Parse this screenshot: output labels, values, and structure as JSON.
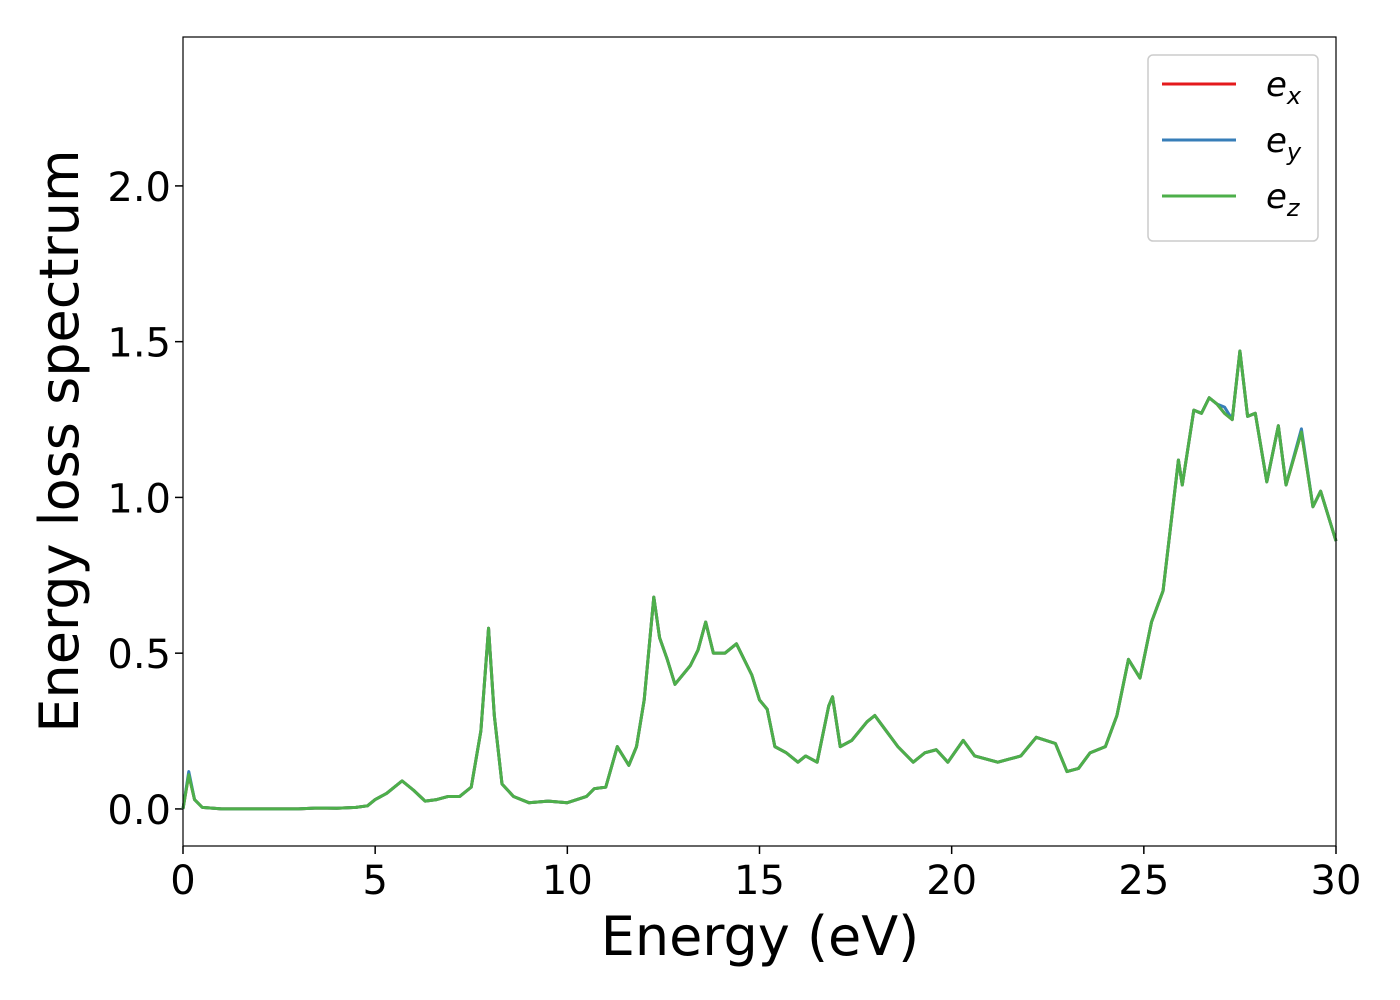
{
  "chart_data": {
    "type": "line",
    "xlabel": "Energy (eV)",
    "ylabel": "Energy loss spectrum",
    "x": [
      0,
      0.15,
      0.3,
      0.5,
      1,
      2,
      3,
      3.5,
      4,
      4.5,
      4.8,
      5,
      5.3,
      5.7,
      6,
      6.3,
      6.6,
      6.9,
      7.2,
      7.5,
      7.75,
      7.95,
      8.1,
      8.3,
      8.6,
      9,
      9.5,
      10,
      10.5,
      10.7,
      11,
      11.3,
      11.6,
      11.8,
      12.0,
      12.25,
      12.4,
      12.6,
      12.8,
      13.2,
      13.4,
      13.6,
      13.8,
      14.1,
      14.4,
      14.8,
      15.0,
      15.2,
      15.4,
      15.7,
      16.0,
      16.2,
      16.5,
      16.8,
      16.9,
      17.1,
      17.4,
      17.8,
      18.0,
      18.3,
      18.6,
      19.0,
      19.3,
      19.6,
      19.9,
      20.3,
      20.6,
      21.2,
      21.5,
      21.8,
      22.2,
      22.7,
      23.0,
      23.3,
      23.6,
      24.0,
      24.3,
      24.6,
      24.9,
      25.2,
      25.5,
      25.9,
      26.0,
      26.3,
      26.5,
      26.7,
      26.9,
      27.1,
      27.3,
      27.5,
      27.7,
      27.9,
      28.2,
      28.5,
      28.7,
      29.1,
      29.4,
      29.6,
      30
    ],
    "series": [
      {
        "name": "ex",
        "color": "#e41a1c",
        "values": [
          0.0,
          0.11,
          0.03,
          0.005,
          0,
          0,
          0,
          0.003,
          0.002,
          0.005,
          0.01,
          0.03,
          0.05,
          0.09,
          0.06,
          0.025,
          0.03,
          0.04,
          0.04,
          0.07,
          0.25,
          0.58,
          0.3,
          0.08,
          0.04,
          0.02,
          0.025,
          0.02,
          0.04,
          0.065,
          0.07,
          0.2,
          0.14,
          0.2,
          0.35,
          0.68,
          0.55,
          0.48,
          0.4,
          0.46,
          0.51,
          0.6,
          0.5,
          0.5,
          0.53,
          0.43,
          0.35,
          0.32,
          0.2,
          0.18,
          0.15,
          0.17,
          0.15,
          0.33,
          0.36,
          0.2,
          0.22,
          0.28,
          0.3,
          0.25,
          0.2,
          0.15,
          0.18,
          0.19,
          0.15,
          0.22,
          0.17,
          0.15,
          0.16,
          0.17,
          0.23,
          0.21,
          0.12,
          0.13,
          0.18,
          0.2,
          0.3,
          0.48,
          0.42,
          0.6,
          0.7,
          1.12,
          1.04,
          1.28,
          1.27,
          1.32,
          1.3,
          1.27,
          1.25,
          1.47,
          1.26,
          1.27,
          1.05,
          1.23,
          1.04,
          1.21,
          0.97,
          1.02,
          0.86
        ]
      },
      {
        "name": "ey",
        "color": "#377eb8",
        "values": [
          0.0,
          0.12,
          0.03,
          0.005,
          0,
          0,
          0,
          0.003,
          0.002,
          0.005,
          0.01,
          0.03,
          0.05,
          0.09,
          0.06,
          0.025,
          0.03,
          0.04,
          0.04,
          0.07,
          0.25,
          0.58,
          0.3,
          0.08,
          0.04,
          0.02,
          0.025,
          0.02,
          0.04,
          0.065,
          0.07,
          0.2,
          0.14,
          0.2,
          0.35,
          0.68,
          0.55,
          0.48,
          0.4,
          0.46,
          0.51,
          0.6,
          0.5,
          0.5,
          0.53,
          0.43,
          0.35,
          0.32,
          0.2,
          0.18,
          0.15,
          0.17,
          0.15,
          0.33,
          0.36,
          0.2,
          0.22,
          0.28,
          0.3,
          0.25,
          0.2,
          0.15,
          0.18,
          0.19,
          0.15,
          0.22,
          0.17,
          0.15,
          0.16,
          0.17,
          0.23,
          0.21,
          0.12,
          0.13,
          0.18,
          0.2,
          0.3,
          0.48,
          0.42,
          0.6,
          0.7,
          1.12,
          1.04,
          1.28,
          1.27,
          1.32,
          1.3,
          1.29,
          1.25,
          1.47,
          1.26,
          1.27,
          1.05,
          1.23,
          1.04,
          1.22,
          0.97,
          1.02,
          0.86
        ]
      },
      {
        "name": "ez",
        "color": "#4daf4a",
        "values": [
          0.0,
          0.11,
          0.03,
          0.005,
          0,
          0,
          0,
          0.003,
          0.002,
          0.005,
          0.01,
          0.03,
          0.05,
          0.09,
          0.06,
          0.025,
          0.03,
          0.04,
          0.04,
          0.07,
          0.25,
          0.58,
          0.3,
          0.08,
          0.04,
          0.02,
          0.025,
          0.02,
          0.04,
          0.065,
          0.07,
          0.2,
          0.14,
          0.2,
          0.35,
          0.68,
          0.55,
          0.48,
          0.4,
          0.46,
          0.51,
          0.6,
          0.5,
          0.5,
          0.53,
          0.43,
          0.35,
          0.32,
          0.2,
          0.18,
          0.15,
          0.17,
          0.15,
          0.33,
          0.36,
          0.2,
          0.22,
          0.28,
          0.3,
          0.25,
          0.2,
          0.15,
          0.18,
          0.19,
          0.15,
          0.22,
          0.17,
          0.15,
          0.16,
          0.17,
          0.23,
          0.21,
          0.12,
          0.13,
          0.18,
          0.2,
          0.3,
          0.48,
          0.42,
          0.6,
          0.7,
          1.12,
          1.04,
          1.28,
          1.27,
          1.32,
          1.3,
          1.27,
          1.25,
          1.47,
          1.26,
          1.27,
          1.05,
          1.23,
          1.04,
          1.21,
          0.97,
          1.02,
          0.86
        ]
      }
    ],
    "xlim": [
      0,
      30
    ],
    "xticks": [
      0,
      5,
      10,
      15,
      20,
      25,
      30
    ],
    "ylim": [
      -0.119,
      2.478
    ],
    "yticks": [
      {
        "value": 0,
        "label": "0.0"
      },
      0.5,
      {
        "value": 1,
        "label": "1.0"
      },
      1.5,
      {
        "value": 2,
        "label": "2.0"
      }
    ],
    "grid": false,
    "legend": "upper right"
  }
}
